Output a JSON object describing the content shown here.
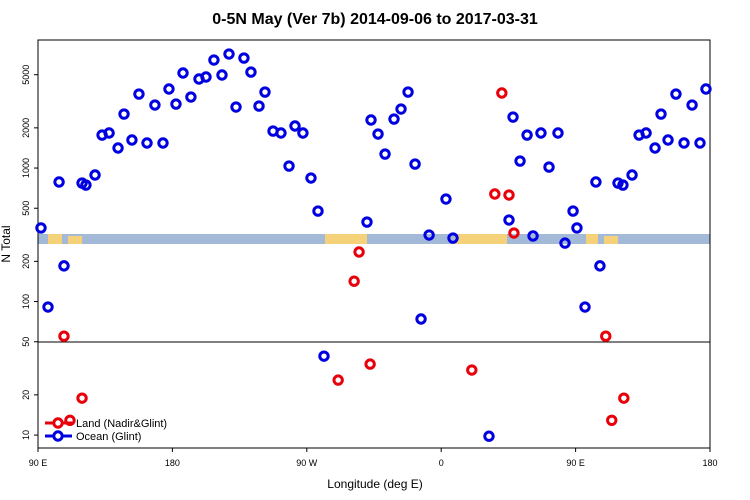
{
  "chart_data": {
    "type": "scatter",
    "title": "0-5N May (Ver 7b)   2014-09-06 to 2017-03-31",
    "x_label": "Longitude (deg E)",
    "y_label": "N Total",
    "xlim": [
      90,
      540
    ],
    "ylim": [
      8,
      9100
    ],
    "log_y": true,
    "legend": "lower left",
    "xticks": [
      {
        "value": 90,
        "label": "90 E"
      },
      180,
      {
        "value": 270,
        "label": "90 W"
      },
      {
        "value": 360,
        "label": "0"
      },
      {
        "value": 450,
        "label": "90 E"
      },
      {
        "value": 540,
        "label": "180"
      }
    ],
    "yticks": [
      10,
      20,
      50,
      100,
      200,
      500,
      1000,
      2000,
      5000
    ],
    "series": [
      {
        "name": "Land (Nadir&Glint)",
        "color": "#e8000b",
        "x": [
          107.4,
          111.4,
          119.5,
          291.0,
          301.7,
          305.0,
          312.4,
          380.5,
          395.9,
          400.6,
          405.4,
          408.7,
          470.2,
          474.2,
          482.3
        ],
        "y": [
          55,
          12.9,
          18.9,
          25.8,
          142,
          235,
          34,
          30.7,
          639,
          3648,
          628,
          326,
          55,
          12.9,
          18.9
        ]
      },
      {
        "name": "Ocean (Glint)",
        "color": "#0000e0",
        "x": [
          92.0,
          96.7,
          104.1,
          107.4,
          119.5,
          122.1,
          128.2,
          132.9,
          137.6,
          143.6,
          147.6,
          152.9,
          157.6,
          163.0,
          168.3,
          173.7,
          177.7,
          182.4,
          187.1,
          192.4,
          197.8,
          202.5,
          207.8,
          213.2,
          217.9,
          222.6,
          227.9,
          232.6,
          238.0,
          242.0,
          247.4,
          252.7,
          262.1,
          267.4,
          258.1,
          272.8,
          277.5,
          281.5,
          310.3,
          313.0,
          317.7,
          322.4,
          328.4,
          333.1,
          337.8,
          342.5,
          346.5,
          351.9,
          363.2,
          367.9,
          405.4,
          408.1,
          412.8,
          417.5,
          421.5,
          426.8,
          432.2,
          438.2,
          442.9,
          448.3,
          450.9,
          456.3,
          463.6,
          466.3,
          478.4,
          481.7,
          487.8,
          492.5,
          497.2,
          503.2,
          507.2,
          511.9,
          517.2,
          522.6,
          528.0,
          533.3,
          537.3,
          392.0
        ],
        "y": [
          356,
          91,
          786,
          185,
          772,
          746,
          887,
          1767,
          1830,
          1413,
          2537,
          1622,
          3583,
          1540,
          2965,
          1540,
          3908,
          3016,
          5150,
          3404,
          4645,
          4808,
          6442,
          4977,
          7145,
          2864,
          6667,
          5233,
          2911,
          3709,
          1892,
          1830,
          2065,
          1830,
          1035,
          842,
          476,
          39,
          394,
          2290,
          1798,
          1273,
          2328,
          2767,
          3709,
          1071,
          74,
          315,
          586,
          299,
          408,
          2410,
          1128,
          1767,
          310,
          1830,
          1017,
          1830,
          274,
          476,
          356,
          91,
          786,
          185,
          772,
          746,
          887,
          1767,
          1830,
          1413,
          2537,
          1622,
          3583,
          1540,
          2965,
          1540,
          3908,
          9.8
        ]
      }
    ]
  }
}
